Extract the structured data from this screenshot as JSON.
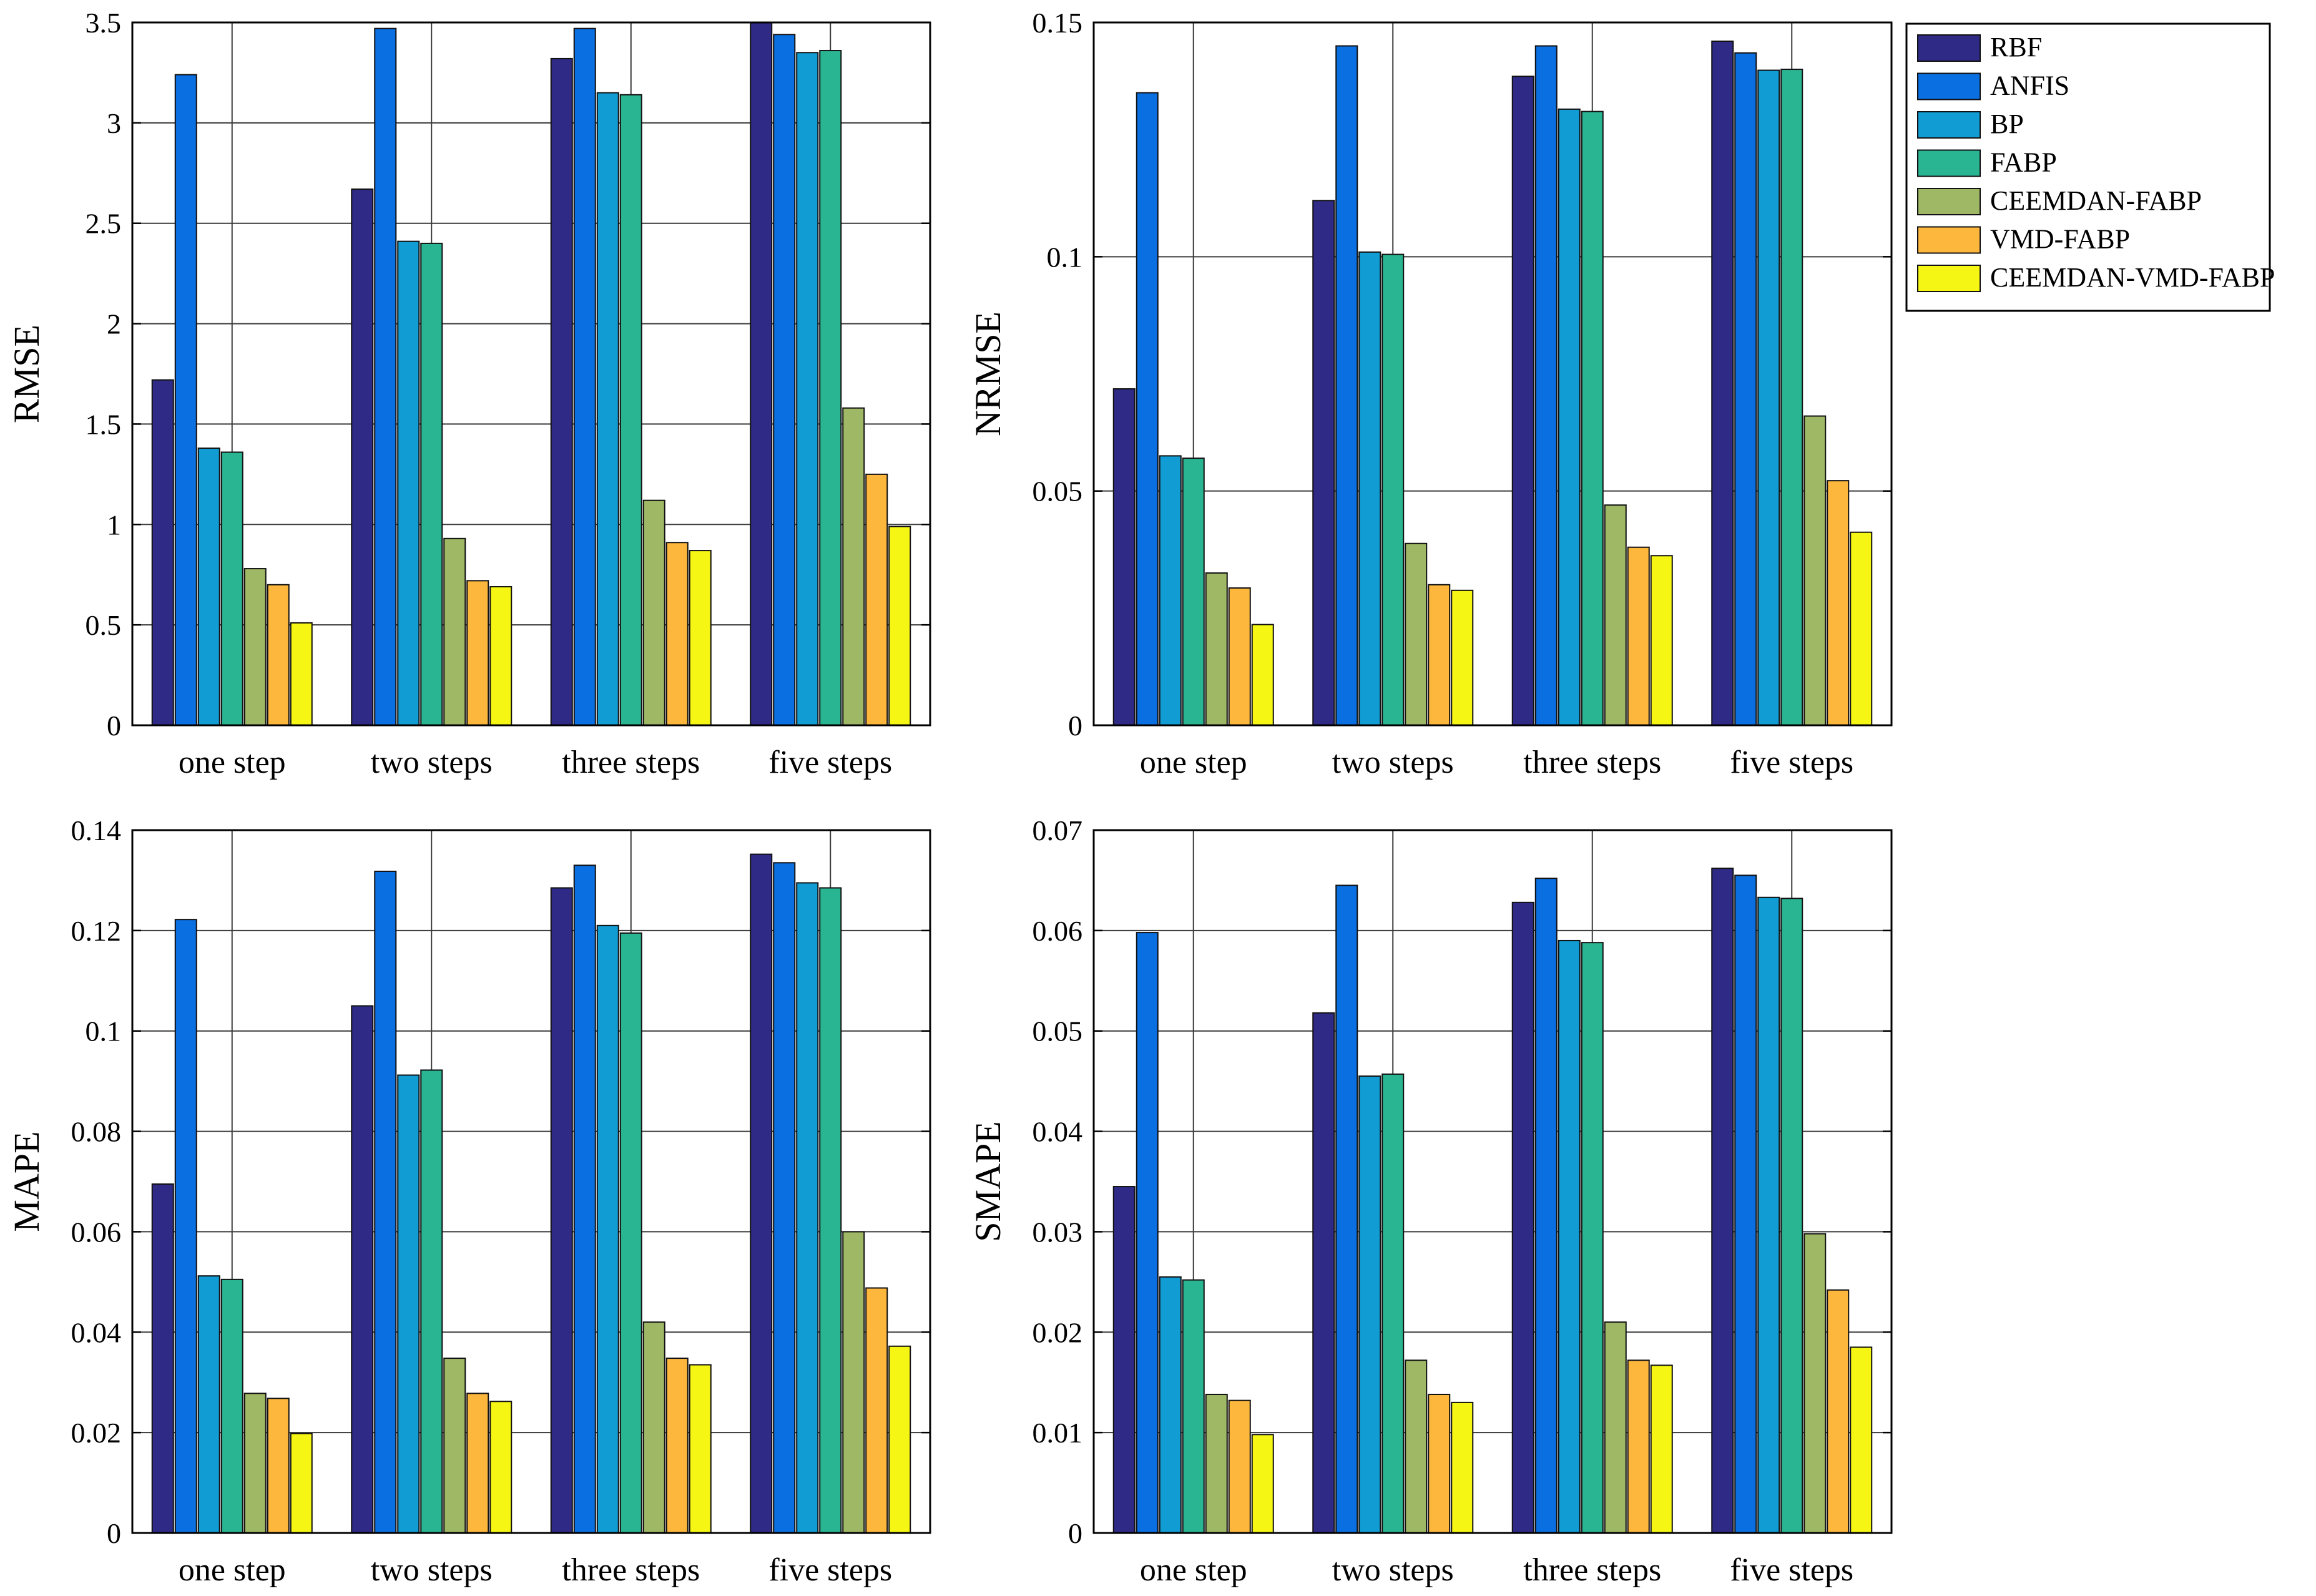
{
  "chart_data": [
    {
      "type": "bar",
      "ylabel": "RMSE",
      "xlabel": "",
      "title": "",
      "categories": [
        "one step",
        "two steps",
        "three steps",
        "five steps"
      ],
      "ylim": [
        0,
        3.5
      ],
      "yticks": [
        0,
        0.5,
        1,
        1.5,
        2,
        2.5,
        3,
        3.5
      ],
      "ytick_labels": [
        "0",
        "0.5",
        "1",
        "1.5",
        "2",
        "2.5",
        "3",
        "3.5"
      ],
      "grid": true,
      "series": [
        {
          "name": "RBF",
          "values": [
            1.72,
            2.67,
            3.32,
            3.5
          ]
        },
        {
          "name": "ANFIS",
          "values": [
            3.24,
            3.47,
            3.47,
            3.44
          ]
        },
        {
          "name": "BP",
          "values": [
            1.38,
            2.41,
            3.15,
            3.35
          ]
        },
        {
          "name": "FABP",
          "values": [
            1.36,
            2.4,
            3.14,
            3.36
          ]
        },
        {
          "name": "CEEMDAN-FABP",
          "values": [
            0.78,
            0.93,
            1.12,
            1.58
          ]
        },
        {
          "name": "VMD-FABP",
          "values": [
            0.7,
            0.72,
            0.91,
            1.25
          ]
        },
        {
          "name": "CEEMDAN-VMD-FABP",
          "values": [
            0.51,
            0.69,
            0.87,
            0.99
          ]
        }
      ]
    },
    {
      "type": "bar",
      "ylabel": "NRMSE",
      "xlabel": "",
      "title": "",
      "categories": [
        "one step",
        "two steps",
        "three steps",
        "five steps"
      ],
      "ylim": [
        0,
        0.15
      ],
      "yticks": [
        0,
        0.05,
        0.1,
        0.15
      ],
      "ytick_labels": [
        "0",
        "0.05",
        "0.1",
        "0.15"
      ],
      "grid": true,
      "series": [
        {
          "name": "RBF",
          "values": [
            0.0718,
            0.112,
            0.1385,
            0.146
          ]
        },
        {
          "name": "ANFIS",
          "values": [
            0.135,
            0.145,
            0.145,
            0.1435
          ]
        },
        {
          "name": "BP",
          "values": [
            0.0575,
            0.101,
            0.1315,
            0.1398
          ]
        },
        {
          "name": "FABP",
          "values": [
            0.057,
            0.1005,
            0.131,
            0.14
          ]
        },
        {
          "name": "CEEMDAN-FABP",
          "values": [
            0.0325,
            0.0388,
            0.047,
            0.066
          ]
        },
        {
          "name": "VMD-FABP",
          "values": [
            0.0293,
            0.03,
            0.038,
            0.0522
          ]
        },
        {
          "name": "CEEMDAN-VMD-FABP",
          "values": [
            0.0215,
            0.0288,
            0.0362,
            0.0412
          ]
        }
      ]
    },
    {
      "type": "bar",
      "ylabel": "MAPE",
      "xlabel": "",
      "title": "",
      "categories": [
        "one step",
        "two steps",
        "three steps",
        "five steps"
      ],
      "ylim": [
        0,
        0.14
      ],
      "yticks": [
        0,
        0.02,
        0.04,
        0.06,
        0.08,
        0.1,
        0.12,
        0.14
      ],
      "ytick_labels": [
        "0",
        "0.02",
        "0.04",
        "0.06",
        "0.08",
        "0.1",
        "0.12",
        "0.14"
      ],
      "grid": true,
      "series": [
        {
          "name": "RBF",
          "values": [
            0.0695,
            0.105,
            0.1285,
            0.1352
          ]
        },
        {
          "name": "ANFIS",
          "values": [
            0.1222,
            0.1318,
            0.133,
            0.1335
          ]
        },
        {
          "name": "BP",
          "values": [
            0.0512,
            0.0912,
            0.121,
            0.1295
          ]
        },
        {
          "name": "FABP",
          "values": [
            0.0505,
            0.0922,
            0.1195,
            0.1285
          ]
        },
        {
          "name": "CEEMDAN-FABP",
          "values": [
            0.0278,
            0.0348,
            0.042,
            0.06
          ]
        },
        {
          "name": "VMD-FABP",
          "values": [
            0.0268,
            0.0278,
            0.0348,
            0.0488
          ]
        },
        {
          "name": "CEEMDAN-VMD-FABP",
          "values": [
            0.0198,
            0.0262,
            0.0335,
            0.0372
          ]
        }
      ]
    },
    {
      "type": "bar",
      "ylabel": "SMAPE",
      "xlabel": "",
      "title": "",
      "categories": [
        "one step",
        "two steps",
        "three steps",
        "five steps"
      ],
      "ylim": [
        0,
        0.07
      ],
      "yticks": [
        0,
        0.01,
        0.02,
        0.03,
        0.04,
        0.05,
        0.06,
        0.07
      ],
      "ytick_labels": [
        "0",
        "0.01",
        "0.02",
        "0.03",
        "0.04",
        "0.05",
        "0.06",
        "0.07"
      ],
      "grid": true,
      "series": [
        {
          "name": "RBF",
          "values": [
            0.0345,
            0.0518,
            0.0628,
            0.0662
          ]
        },
        {
          "name": "ANFIS",
          "values": [
            0.0598,
            0.0645,
            0.0652,
            0.0655
          ]
        },
        {
          "name": "BP",
          "values": [
            0.0255,
            0.0455,
            0.059,
            0.0633
          ]
        },
        {
          "name": "FABP",
          "values": [
            0.0252,
            0.0457,
            0.0588,
            0.0632
          ]
        },
        {
          "name": "CEEMDAN-FABP",
          "values": [
            0.0138,
            0.0172,
            0.021,
            0.0298
          ]
        },
        {
          "name": "VMD-FABP",
          "values": [
            0.0132,
            0.0138,
            0.0172,
            0.0242
          ]
        },
        {
          "name": "CEEMDAN-VMD-FABP",
          "values": [
            0.0098,
            0.013,
            0.0167,
            0.0185
          ]
        }
      ]
    }
  ],
  "legend": {
    "position": "top-right",
    "entries": [
      "RBF",
      "ANFIS",
      "BP",
      "FABP",
      "CEEMDAN-FABP",
      "VMD-FABP",
      "CEEMDAN-VMD-FABP"
    ]
  },
  "colors": {
    "RBF": "#2e2a85",
    "ANFIS": "#0a6fe0",
    "BP": "#119cd4",
    "FABP": "#2ab592",
    "CEEMDAN-FABP": "#9fb865",
    "VMD-FABP": "#fdb73d",
    "CEEMDAN-VMD-FABP": "#f6f614",
    "grid": "#3a3a3a",
    "axis": "#000000"
  }
}
